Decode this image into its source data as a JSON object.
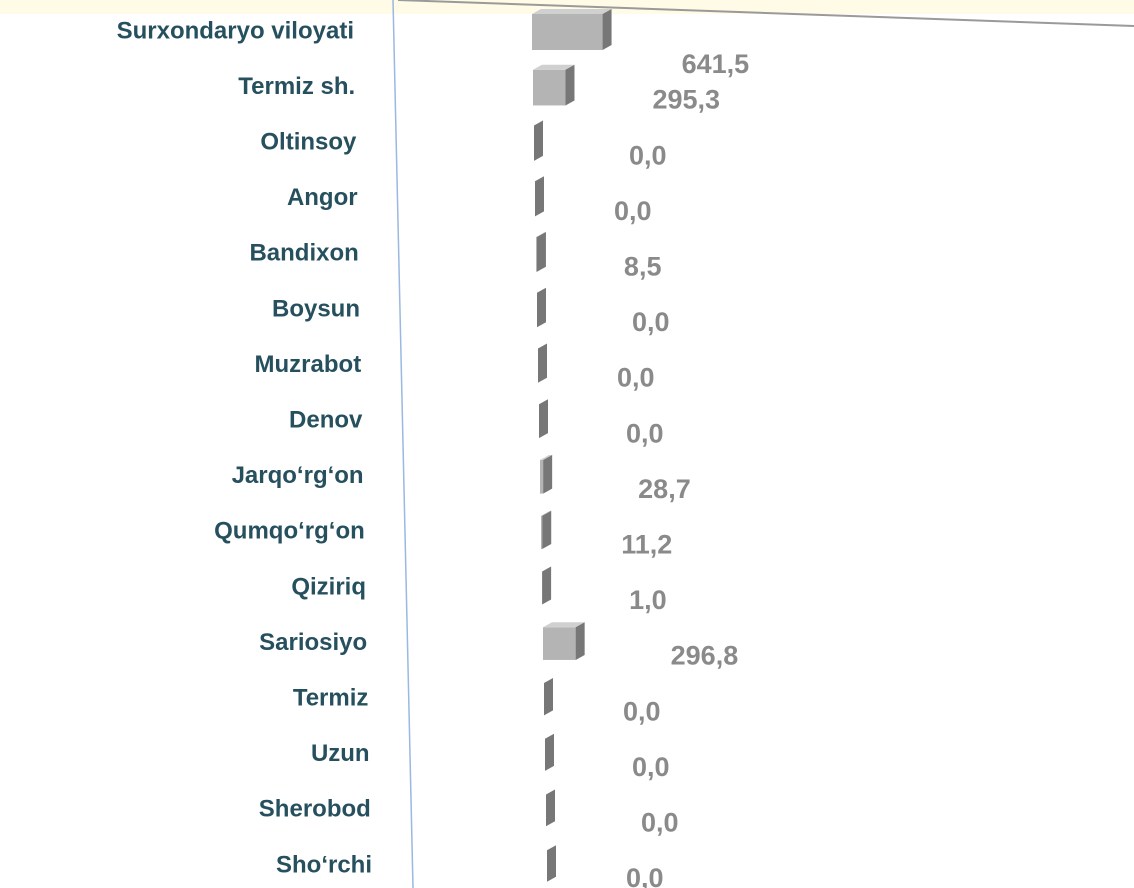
{
  "chart_data": {
    "type": "bar",
    "orientation": "horizontal",
    "categories": [
      "Surxondaryo viloyati",
      "Termiz sh.",
      "Oltinsoy",
      "Angor",
      "Bandixon",
      "Boysun",
      "Muzrabot",
      "Denov",
      "Jarqo‘rg‘on",
      "Qumqo‘rg‘on",
      "Qiziriq",
      "Sariosiyo",
      "Termiz",
      "Uzun",
      "Sherobod",
      "Sho‘rchi"
    ],
    "values": [
      641.5,
      295.3,
      0.0,
      0.0,
      8.5,
      0.0,
      0.0,
      0.0,
      28.7,
      11.2,
      1.0,
      296.8,
      0.0,
      0.0,
      0.0,
      0.0
    ],
    "value_labels": [
      "641,5",
      "295,3",
      "0,0",
      "0,0",
      "8,5",
      "0,0",
      "0,0",
      "0,0",
      "28,7",
      "11,2",
      "1,0",
      "296,8",
      "0,0",
      "0,0",
      "0,0",
      "0,0"
    ],
    "color": "#b4b4b4"
  }
}
